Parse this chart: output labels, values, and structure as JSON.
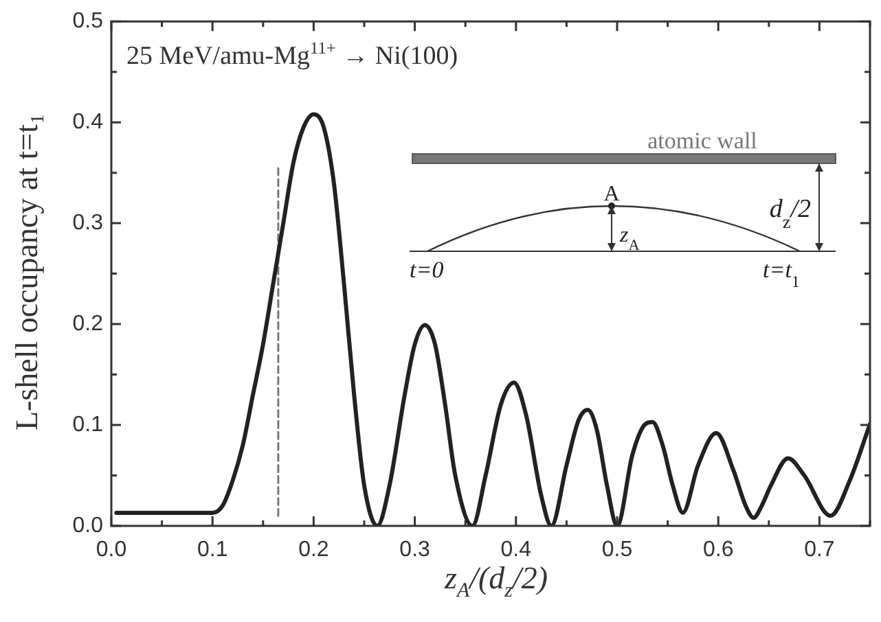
{
  "chart_data": {
    "type": "line",
    "title": "25 MeV/amu-Mg$^{11+}$ → Ni(100)",
    "xlabel": "z$_{A}$/(d$_{z}$/2)",
    "ylabel": "L-shell occupancy at t=t₁",
    "xlim": [
      0,
      0.75
    ],
    "ylim": [
      0,
      0.5
    ],
    "xticks": [
      {
        "value": 0,
        "label": "0.0"
      },
      {
        "value": 0.05,
        "label": null
      },
      0.1,
      {
        "value": 0.15,
        "label": null
      },
      0.2,
      {
        "value": 0.25,
        "label": null
      },
      0.3,
      {
        "value": 0.35,
        "label": null
      },
      0.4,
      {
        "value": 0.45,
        "label": null
      },
      0.5,
      {
        "value": 0.55,
        "label": null
      },
      0.6,
      {
        "value": 0.65,
        "label": null
      },
      0.7,
      {
        "value": 0.75,
        "label": null
      }
    ],
    "yticks": [
      {
        "value": 0,
        "label": "0.0"
      },
      {
        "value": 0.05,
        "label": null
      },
      0.1,
      {
        "value": 0.15,
        "label": null
      },
      0.2,
      {
        "value": 0.25,
        "label": null
      },
      0.3,
      {
        "value": 0.35,
        "label": null
      },
      0.4,
      {
        "value": 0.45,
        "label": null
      },
      0.5
    ],
    "grid": false,
    "legend": false,
    "marker": "none",
    "series": [
      {
        "color": "#222222",
        "line_style": "solid",
        "x": [
          0.005,
          0.05,
          0.1,
          0.11,
          0.12,
          0.13,
          0.14,
          0.15,
          0.16,
          0.17,
          0.18,
          0.19,
          0.2,
          0.21,
          0.22,
          0.23,
          0.24,
          0.25,
          0.263,
          0.275,
          0.29,
          0.3,
          0.31,
          0.32,
          0.33,
          0.34,
          0.357,
          0.37,
          0.385,
          0.398,
          0.41,
          0.425,
          0.435,
          0.45,
          0.462,
          0.471,
          0.48,
          0.49,
          0.5,
          0.515,
          0.527,
          0.535,
          0.545,
          0.555,
          0.565,
          0.58,
          0.598,
          0.615,
          0.627,
          0.635,
          0.643,
          0.652,
          0.669,
          0.685,
          0.711,
          0.73,
          0.75
        ],
        "values": [
          0.013,
          0.013,
          0.013,
          0.02,
          0.045,
          0.08,
          0.13,
          0.18,
          0.24,
          0.3,
          0.36,
          0.395,
          0.408,
          0.395,
          0.34,
          0.24,
          0.13,
          0.04,
          0.0,
          0.04,
          0.13,
          0.18,
          0.199,
          0.18,
          0.12,
          0.05,
          0.0,
          0.05,
          0.12,
          0.142,
          0.11,
          0.03,
          0.0,
          0.06,
          0.105,
          0.115,
          0.095,
          0.04,
          0.0,
          0.07,
          0.1,
          0.103,
          0.08,
          0.04,
          0.013,
          0.06,
          0.092,
          0.055,
          0.02,
          0.008,
          0.02,
          0.04,
          0.067,
          0.05,
          0.01,
          0.045,
          0.101
        ]
      },
      {
        "color": "#777777",
        "line_style": "dashed",
        "x": [
          0.165,
          0.165
        ],
        "values": [
          0.01,
          0.355
        ]
      }
    ],
    "annotations": [
      "atomic wall",
      "A",
      "z$_{A}$",
      "d$_{z}$/2",
      "t=0",
      "t=t$_{1}$"
    ]
  }
}
